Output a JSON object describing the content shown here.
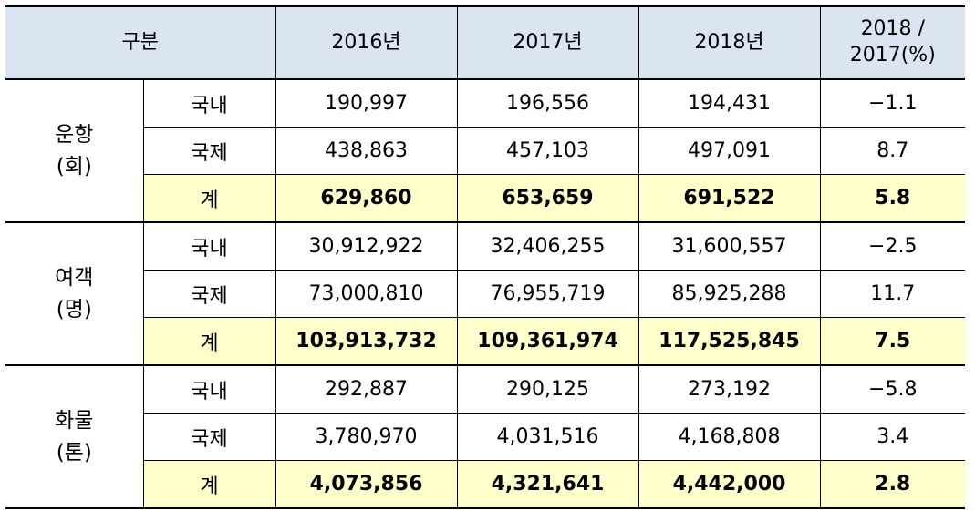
{
  "header": {
    "category": "구분",
    "year_2016": "2016년",
    "year_2017": "2017년",
    "year_2018": "2018년",
    "ratio_line1": "2018 /",
    "ratio_line2": "2017(%)"
  },
  "groups": [
    {
      "label_line1": "운항",
      "label_line2": "(회)",
      "rows": [
        {
          "sub": "국내",
          "v2016": "190,997",
          "v2017": "196,556",
          "v2018": "194,431",
          "ratio": "−1.1"
        },
        {
          "sub": "국제",
          "v2016": "438,863",
          "v2017": "457,103",
          "v2018": "497,091",
          "ratio": "8.7"
        },
        {
          "sub": "계",
          "v2016": "629,860",
          "v2017": "653,659",
          "v2018": "691,522",
          "ratio": "5.8"
        }
      ]
    },
    {
      "label_line1": "여객",
      "label_line2": "(명)",
      "rows": [
        {
          "sub": "국내",
          "v2016": "30,912,922",
          "v2017": "32,406,255",
          "v2018": "31,600,557",
          "ratio": "−2.5"
        },
        {
          "sub": "국제",
          "v2016": "73,000,810",
          "v2017": "76,955,719",
          "v2018": "85,925,288",
          "ratio": "11.7"
        },
        {
          "sub": "계",
          "v2016": "103,913,732",
          "v2017": "109,361,974",
          "v2018": "117,525,845",
          "ratio": "7.5"
        }
      ]
    },
    {
      "label_line1": "화물",
      "label_line2": "(톤)",
      "rows": [
        {
          "sub": "국내",
          "v2016": "292,887",
          "v2017": "290,125",
          "v2018": "273,192",
          "ratio": "−5.8"
        },
        {
          "sub": "국제",
          "v2016": "3,780,970",
          "v2017": "4,031,516",
          "v2018": "4,168,808",
          "ratio": "3.4"
        },
        {
          "sub": "계",
          "v2016": "4,073,856",
          "v2017": "4,321,641",
          "v2018": "4,442,000",
          "ratio": "2.8"
        }
      ]
    }
  ],
  "colors": {
    "header_bg": "#dbe5f1",
    "total_bg": "#ffffcc"
  }
}
